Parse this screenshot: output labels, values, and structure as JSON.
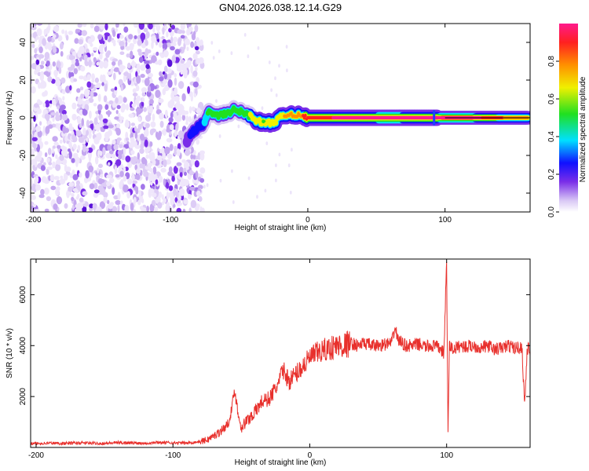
{
  "title": "GN04.2026.038.12.14.G29",
  "colors": {
    "snr_line": "#e8302c",
    "noise": "#6a1fd6",
    "axis": "#000000"
  },
  "chart_data": [
    {
      "type": "heatmap",
      "name": "spectrogram",
      "xlabel": "Height of straight line (km)",
      "ylabel": "Frequency (Hz)",
      "xlim": [
        -202,
        162
      ],
      "ylim": [
        -50,
        50
      ],
      "xticks": [
        "-200",
        "-100",
        "0",
        "100"
      ],
      "xtick_values": [
        -200,
        -100,
        0,
        100
      ],
      "yticks": [
        "-40",
        "-20",
        "0",
        "20",
        "40"
      ],
      "ytick_values": [
        -40,
        -20,
        0,
        20,
        40
      ],
      "noise_region_end_km": -80,
      "signal_track": [
        {
          "x": -88,
          "f": -12,
          "a": 0.28
        },
        {
          "x": -84,
          "f": -8,
          "a": 0.32
        },
        {
          "x": -80,
          "f": -5,
          "a": 0.38
        },
        {
          "x": -76,
          "f": -3,
          "a": 0.4
        },
        {
          "x": -72,
          "f": 3,
          "a": 0.48
        },
        {
          "x": -66,
          "f": 1,
          "a": 0.5
        },
        {
          "x": -60,
          "f": 2,
          "a": 0.52
        },
        {
          "x": -54,
          "f": 4,
          "a": 0.5
        },
        {
          "x": -48,
          "f": 3,
          "a": 0.48
        },
        {
          "x": -42,
          "f": 1,
          "a": 0.55
        },
        {
          "x": -36,
          "f": -2,
          "a": 0.58
        },
        {
          "x": -30,
          "f": -3,
          "a": 0.62
        },
        {
          "x": -24,
          "f": -2,
          "a": 0.68
        },
        {
          "x": -18,
          "f": 1,
          "a": 0.72
        },
        {
          "x": -12,
          "f": 2,
          "a": 0.78
        },
        {
          "x": -6,
          "f": 1,
          "a": 0.8
        },
        {
          "x": 0,
          "f": 0,
          "a": 0.9
        },
        {
          "x": 20,
          "f": 0,
          "a": 0.95
        },
        {
          "x": 40,
          "f": 0,
          "a": 0.97
        },
        {
          "x": 60,
          "f": 0,
          "a": 0.98
        },
        {
          "x": 80,
          "f": 0,
          "a": 0.97
        },
        {
          "x": 92,
          "f": 0,
          "a": 0.95
        },
        {
          "x": 100,
          "f": 0,
          "a": 1.0
        },
        {
          "x": 120,
          "f": 0,
          "a": 1.0
        },
        {
          "x": 140,
          "f": 0,
          "a": 0.85
        },
        {
          "x": 160,
          "f": 0,
          "a": 0.75
        }
      ],
      "colorbar": {
        "label": "Normalized spectral amplitude",
        "ticks": [
          "0.0",
          "0.2",
          "0.4",
          "0.6",
          "0.8"
        ],
        "tick_values": [
          0.0,
          0.2,
          0.4,
          0.6,
          0.8
        ],
        "range": [
          0,
          1
        ],
        "colormap": [
          "#ffffff",
          "#d9c8f5",
          "#7a2ee8",
          "#1010ff",
          "#00e0ff",
          "#20e020",
          "#f0f000",
          "#ff9000",
          "#ff2020",
          "#ff1a8c"
        ]
      }
    },
    {
      "type": "line",
      "name": "snr",
      "xlabel": "Height of straight line (km)",
      "ylabel": "SNR (10 * v/v)",
      "xlim": [
        -204,
        161
      ],
      "ylim": [
        0,
        7400
      ],
      "xticks": [
        "-200",
        "-100",
        "0",
        "100"
      ],
      "xtick_values": [
        -200,
        -100,
        0,
        100
      ],
      "yticks": [
        "2000",
        "4000",
        "6000"
      ],
      "ytick_values": [
        2000,
        4000,
        6000
      ],
      "x": [
        -204,
        -190,
        -180,
        -170,
        -160,
        -150,
        -140,
        -130,
        -120,
        -110,
        -100,
        -90,
        -80,
        -75,
        -70,
        -65,
        -60,
        -57,
        -55,
        -52,
        -50,
        -45,
        -40,
        -35,
        -30,
        -25,
        -22,
        -20,
        -15,
        -10,
        -5,
        0,
        5,
        10,
        15,
        20,
        25,
        30,
        35,
        40,
        45,
        50,
        55,
        60,
        62,
        65,
        70,
        75,
        80,
        85,
        90,
        95,
        98,
        100,
        101,
        102,
        105,
        110,
        115,
        120,
        125,
        130,
        135,
        140,
        145,
        150,
        155,
        157,
        159,
        161
      ],
      "y": [
        150,
        170,
        160,
        180,
        170,
        160,
        190,
        180,
        170,
        200,
        180,
        170,
        230,
        300,
        450,
        650,
        900,
        1500,
        2300,
        1200,
        800,
        1100,
        1400,
        1800,
        1900,
        2300,
        2600,
        3100,
        2600,
        2900,
        3200,
        3500,
        3700,
        3800,
        3900,
        4000,
        4000,
        4100,
        4000,
        4100,
        4000,
        4000,
        4050,
        4100,
        4700,
        4200,
        4000,
        4000,
        4050,
        3950,
        4000,
        3900,
        3700,
        7300,
        400,
        4000,
        3850,
        4000,
        3950,
        4000,
        3900,
        4000,
        3850,
        3900,
        4000,
        3900,
        3950,
        1700,
        3900,
        3800
      ]
    }
  ]
}
